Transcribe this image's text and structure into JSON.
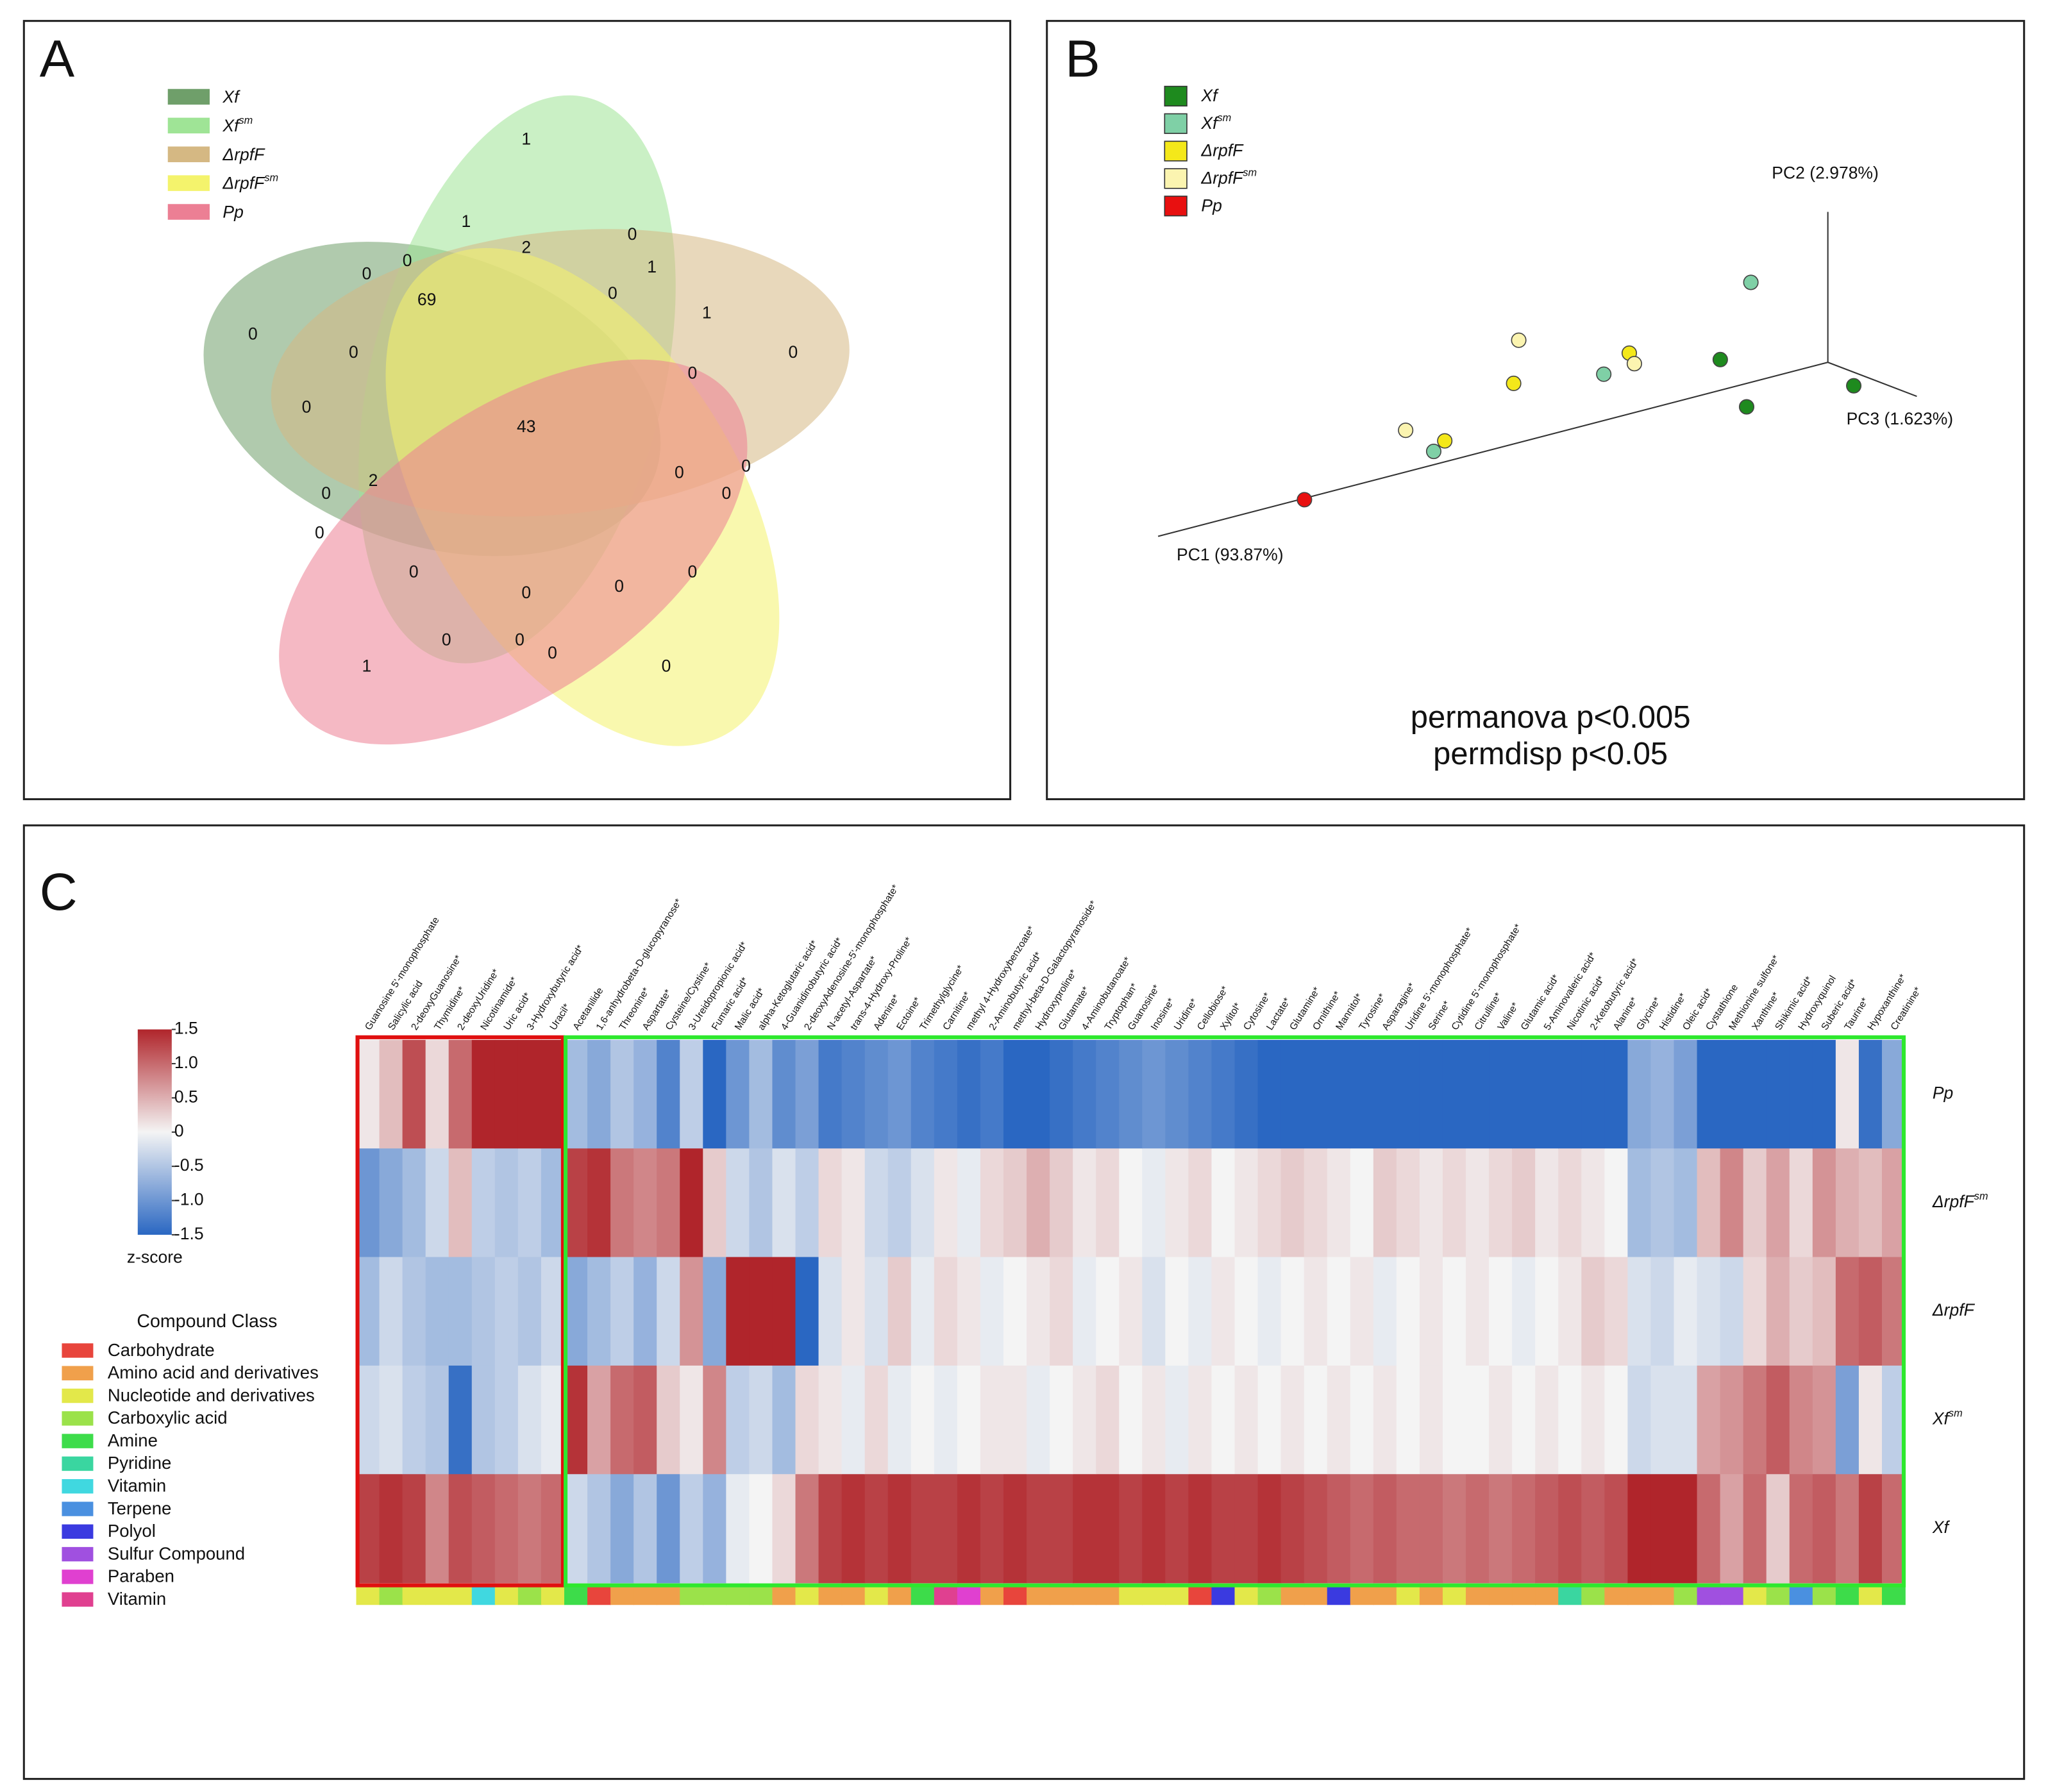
{
  "chart_data": [
    {
      "type": "venn",
      "panel": "A",
      "series": [
        {
          "name": "Xf",
          "color": "#6f9f6a"
        },
        {
          "name": "Xf",
          "sup": "sm",
          "color": "#9fe496"
        },
        {
          "name": "ΔrpfF",
          "color": "#d5b883"
        },
        {
          "name": "ΔrpfF",
          "sup": "sm",
          "color": "#f4f36c"
        },
        {
          "name": "Pp",
          "color": "#ec7f94"
        }
      ],
      "counts": [
        1,
        1,
        2,
        0,
        1,
        0,
        0,
        69,
        0,
        1,
        0,
        0,
        0,
        0,
        0,
        43,
        2,
        0,
        0,
        0,
        0,
        0,
        0,
        0,
        0,
        0,
        0,
        0,
        0,
        1,
        0
      ]
    },
    {
      "type": "scatter",
      "panel": "B",
      "xlim": [
        0,
        100
      ],
      "ylim": [
        0,
        100
      ],
      "axis_labels": [
        "PC1 (93.87%)",
        "PC2 (2.978%)",
        "PC3 (1.623%)"
      ],
      "series": [
        {
          "name": "Xf",
          "color": "#1e8a1e",
          "x": [
            71.5,
            74.6,
            87.2
          ],
          "y": [
            63.5,
            49.6,
            55.8
          ]
        },
        {
          "name": "Xf",
          "sup": "sm",
          "color": "#7fd0a6",
          "x": [
            75.1,
            57.8,
            37.8
          ],
          "y": [
            86.2,
            59.2,
            36.5
          ]
        },
        {
          "name": "ΔrpfF",
          "color": "#f4e81a",
          "x": [
            47.2,
            60.8,
            39.1
          ],
          "y": [
            56.5,
            65.4,
            39.6
          ]
        },
        {
          "name": "ΔrpfF",
          "sup": "sm",
          "color": "#fbf4b0",
          "x": [
            47.8,
            61.4,
            34.5
          ],
          "y": [
            69.2,
            62.3,
            42.7
          ]
        },
        {
          "name": "Pp",
          "color": "#e81010",
          "x": [
            22.6
          ],
          "y": [
            22.3
          ]
        }
      ],
      "annotations": [
        "permanova p<0.005",
        "permdisp p<0.05"
      ]
    },
    {
      "type": "heatmap",
      "panel": "C",
      "zlim": [
        -1.5,
        1.5
      ],
      "colormap": [
        "#2a67c2",
        "#f4f4f4",
        "#b0252b"
      ],
      "colorbar_ticks": [
        1.5,
        {
          "value": 1.0,
          "label": "1.0"
        },
        0.5,
        0,
        -0.5,
        {
          "value": -1.0,
          "label": "-1.0"
        },
        -1.5
      ],
      "colorbar_label": "z-score",
      "legend_title": "Compound Class",
      "classes": [
        {
          "name": "Carbohydrate",
          "color": "#e8453c"
        },
        {
          "name": "Amino acid and derivatives",
          "color": "#f0a04b"
        },
        {
          "name": "Nucleotide and derivatives",
          "color": "#e3e84a"
        },
        {
          "name": "Carboxylic acid",
          "color": "#9be24a"
        },
        {
          "name": "Amine",
          "color": "#3ddc4a"
        },
        {
          "name": "Pyridine",
          "color": "#3ad6a0"
        },
        {
          "name": "Vitamin",
          "color": "#40d8e0"
        },
        {
          "name": "Terpene",
          "color": "#4a90e0"
        },
        {
          "name": "Polyol",
          "color": "#3a3ae0"
        },
        {
          "name": "Sulfur Compound",
          "color": "#a050e0"
        },
        {
          "name": "Paraben",
          "color": "#e040d0"
        },
        {
          "name": "Vitamin",
          "color": "#e04090"
        }
      ],
      "rows": [
        {
          "name": "Pp"
        },
        {
          "name": "ΔrpfF",
          "sup": "sm"
        },
        {
          "name": "ΔrpfF"
        },
        {
          "name": "Xf",
          "sup": "sm"
        },
        {
          "name": "Xf"
        }
      ],
      "groups": [
        {
          "start": 0,
          "end": 8,
          "color": "#e01010"
        },
        {
          "start": 9,
          "end": 66,
          "color": "#2ee82e"
        }
      ],
      "columns": [
        {
          "name": "Guanosine 5'-monophosphate",
          "class": 2,
          "z": [
            0.1,
            -1.0,
            -0.6,
            -0.3,
            1.3
          ]
        },
        {
          "name": "Salicylic acid",
          "class": 3,
          "label_color": "#e0305a",
          "z": [
            0.4,
            -0.8,
            -0.3,
            -0.2,
            1.4
          ]
        },
        {
          "name": "2-deoxyGuanosine*",
          "class": 2,
          "z": [
            1.2,
            -0.6,
            -0.5,
            -0.4,
            1.3
          ]
        },
        {
          "name": "Thymidine*",
          "class": 2,
          "z": [
            0.2,
            -0.3,
            -0.6,
            -0.5,
            0.8
          ]
        },
        {
          "name": "2-deoxyUridine*",
          "class": 2,
          "label_color": "#f08a24",
          "z": [
            1.0,
            0.4,
            -0.6,
            -1.4,
            1.2
          ]
        },
        {
          "name": "Nicotinamide*",
          "class": 6,
          "z": [
            1.5,
            -0.4,
            -0.5,
            -0.5,
            1.1
          ]
        },
        {
          "name": "Uric acid*",
          "class": 2,
          "z": [
            1.5,
            -0.5,
            -0.4,
            -0.4,
            1.0
          ]
        },
        {
          "name": "3-Hydroxybutyric acid*",
          "class": 3,
          "z": [
            1.5,
            -0.4,
            -0.5,
            -0.2,
            0.9
          ]
        },
        {
          "name": "Uracil*",
          "class": 2,
          "z": [
            1.5,
            -0.6,
            -0.3,
            -0.1,
            1.0
          ]
        },
        {
          "name": "Acetanilide",
          "class": 4,
          "z": [
            -0.6,
            1.3,
            -0.8,
            1.4,
            -0.3
          ]
        },
        {
          "name": "1,6-anhydrobeta-D-glucopyranose*",
          "class": 0,
          "z": [
            -0.8,
            1.4,
            -0.6,
            0.6,
            -0.5
          ]
        },
        {
          "name": "Threonine*",
          "class": 1,
          "z": [
            -0.5,
            0.9,
            -0.4,
            1.0,
            -0.8
          ]
        },
        {
          "name": "Aspartate*",
          "class": 1,
          "z": [
            -0.7,
            0.8,
            -0.7,
            1.1,
            -0.5
          ]
        },
        {
          "name": "Cysteine/Cystine*",
          "class": 1,
          "z": [
            -1.2,
            0.9,
            -0.3,
            0.3,
            -1.0
          ]
        },
        {
          "name": "3-Ureidopropionic acid*",
          "class": 3,
          "label_color": "#f08a24",
          "z": [
            -0.4,
            1.5,
            0.7,
            0.1,
            -0.4
          ]
        },
        {
          "name": "Fumaric acid*",
          "class": 3,
          "z": [
            -1.5,
            0.3,
            -0.8,
            0.8,
            -0.7
          ]
        },
        {
          "name": "Malic acid*",
          "class": 3,
          "z": [
            -1.0,
            -0.3,
            1.5,
            -0.4,
            -0.1
          ]
        },
        {
          "name": "alpha-Ketoglutaric acid*",
          "class": 3,
          "z": [
            -0.6,
            -0.5,
            1.5,
            -0.3,
            0.0
          ]
        },
        {
          "name": "4-Guanidinobutyric acid*",
          "class": 1,
          "z": [
            -1.1,
            -0.2,
            1.5,
            -0.6,
            0.2
          ]
        },
        {
          "name": "2-deoxyAdenosine-5'-monophosphate*",
          "class": 2,
          "z": [
            -0.9,
            -0.4,
            -1.5,
            0.2,
            0.9
          ]
        },
        {
          "name": "N-acetyl-Aspartate*",
          "class": 1,
          "z": [
            -1.3,
            0.2,
            -0.2,
            0.1,
            1.3
          ]
        },
        {
          "name": "trans-4-Hydroxy-Proline*",
          "class": 1,
          "z": [
            -1.2,
            0.1,
            0.1,
            -0.1,
            1.4
          ]
        },
        {
          "name": "Adenine*",
          "class": 2,
          "z": [
            -1.1,
            -0.3,
            -0.2,
            0.2,
            1.3
          ]
        },
        {
          "name": "Ectoine*",
          "class": 1,
          "z": [
            -1.0,
            -0.4,
            0.3,
            -0.1,
            1.4
          ]
        },
        {
          "name": "Trimethylglycine*",
          "class": 4,
          "z": [
            -1.2,
            -0.2,
            -0.1,
            0.0,
            1.3
          ]
        },
        {
          "name": "Carnitine*",
          "class": 11,
          "label_color": "#e0305a",
          "z": [
            -1.3,
            0.1,
            0.2,
            -0.1,
            1.3
          ]
        },
        {
          "name": "methyl 4-Hydroxybenzoate*",
          "class": 10,
          "z": [
            -1.4,
            -0.1,
            0.1,
            0.0,
            1.4
          ]
        },
        {
          "name": "2-Aminobutyric acid*",
          "class": 1,
          "z": [
            -1.3,
            0.2,
            -0.1,
            0.1,
            1.3
          ]
        },
        {
          "name": "methyl-beta-D-Galactopyranoside*",
          "class": 0,
          "z": [
            -1.5,
            0.3,
            0.0,
            0.1,
            1.4
          ]
        },
        {
          "name": "Hydroxyproline*",
          "class": 1,
          "z": [
            -1.5,
            0.5,
            0.1,
            -0.1,
            1.3
          ]
        },
        {
          "name": "Glutamate*",
          "class": 1,
          "z": [
            -1.4,
            0.3,
            0.2,
            0.0,
            1.3
          ]
        },
        {
          "name": "4-Aminobutanoate*",
          "class": 1,
          "z": [
            -1.3,
            0.1,
            -0.1,
            0.1,
            1.4
          ]
        },
        {
          "name": "Tryptophan*",
          "class": 1,
          "z": [
            -1.2,
            0.2,
            0.0,
            0.2,
            1.4
          ]
        },
        {
          "name": "Guanosine*",
          "class": 2,
          "z": [
            -1.1,
            0.0,
            0.1,
            0.0,
            1.3
          ]
        },
        {
          "name": "Inosine*",
          "class": 2,
          "z": [
            -1.0,
            -0.1,
            -0.2,
            0.1,
            1.4
          ]
        },
        {
          "name": "Uridine*",
          "class": 2,
          "z": [
            -1.1,
            0.1,
            0.0,
            -0.1,
            1.3
          ]
        },
        {
          "name": "Cellobiose*",
          "class": 0,
          "z": [
            -1.2,
            0.2,
            -0.1,
            0.1,
            1.4
          ]
        },
        {
          "name": "Xylitol*",
          "class": 8,
          "z": [
            -1.3,
            0.0,
            0.1,
            0.0,
            1.3
          ]
        },
        {
          "name": "Cytosine*",
          "class": 2,
          "z": [
            -1.4,
            0.1,
            0.0,
            0.1,
            1.3
          ]
        },
        {
          "name": "Lactate*",
          "class": 3,
          "z": [
            -1.5,
            0.2,
            -0.1,
            0.0,
            1.4
          ]
        },
        {
          "name": "Glutamine*",
          "class": 1,
          "z": [
            -1.5,
            0.3,
            0.0,
            0.1,
            1.3
          ]
        },
        {
          "name": "Ornithine*",
          "class": 1,
          "z": [
            -1.5,
            0.2,
            0.1,
            0.0,
            1.2
          ]
        },
        {
          "name": "Mannitol*",
          "class": 8,
          "z": [
            -1.5,
            0.1,
            0.0,
            0.1,
            1.1
          ]
        },
        {
          "name": "Tyrosine*",
          "class": 1,
          "z": [
            -1.5,
            0.0,
            0.1,
            0.0,
            1.0
          ]
        },
        {
          "name": "Asparagine*",
          "class": 1,
          "z": [
            -1.5,
            0.3,
            -0.1,
            0.1,
            1.1
          ]
        },
        {
          "name": "Uridine 5'-monophosphate*",
          "class": 2,
          "z": [
            -1.5,
            0.2,
            0.0,
            0.0,
            1.0
          ]
        },
        {
          "name": "Serine*",
          "class": 1,
          "z": [
            -1.5,
            0.1,
            0.1,
            0.1,
            1.0
          ]
        },
        {
          "name": "Cytidine 5'-monophosphate*",
          "class": 2,
          "z": [
            -1.5,
            0.2,
            0.0,
            0.0,
            0.9
          ]
        },
        {
          "name": "Citrulline*",
          "class": 1,
          "z": [
            -1.5,
            0.1,
            0.1,
            0.0,
            1.0
          ]
        },
        {
          "name": "Valine*",
          "class": 1,
          "z": [
            -1.5,
            0.2,
            0.0,
            0.1,
            0.9
          ]
        },
        {
          "name": "Glutamic acid*",
          "class": 1,
          "z": [
            -1.5,
            0.3,
            -0.1,
            0.0,
            1.0
          ]
        },
        {
          "name": "5-Aminovaleric acid*",
          "class": 1,
          "z": [
            -1.5,
            0.1,
            0.0,
            0.1,
            1.1
          ]
        },
        {
          "name": "Nicotinic acid*",
          "class": 5,
          "z": [
            -1.5,
            0.2,
            0.1,
            0.0,
            1.2
          ]
        },
        {
          "name": "2-Ketobutyric acid*",
          "class": 3,
          "z": [
            -1.5,
            0.1,
            0.3,
            0.1,
            1.1
          ]
        },
        {
          "name": "Alanine*",
          "class": 1,
          "z": [
            -1.5,
            0.0,
            0.2,
            0.0,
            1.2
          ]
        },
        {
          "name": "Glycine*",
          "class": 1,
          "z": [
            -0.8,
            -0.6,
            -0.2,
            -0.3,
            1.5
          ]
        },
        {
          "name": "Histidine*",
          "class": 1,
          "z": [
            -0.7,
            -0.5,
            -0.3,
            -0.2,
            1.5
          ]
        },
        {
          "name": "Oleic acid*",
          "class": 3,
          "z": [
            -0.9,
            -0.6,
            -0.1,
            -0.2,
            1.5
          ]
        },
        {
          "name": "Cystathione",
          "class": 9,
          "z": [
            -1.5,
            0.4,
            -0.2,
            0.6,
            1.0
          ]
        },
        {
          "name": "Methionine sulfone*",
          "class": 9,
          "z": [
            -1.5,
            0.8,
            -0.3,
            0.7,
            0.6
          ]
        },
        {
          "name": "Xanthine*",
          "class": 2,
          "z": [
            -1.5,
            0.3,
            0.2,
            0.9,
            1.0
          ]
        },
        {
          "name": "Shikimic acid*",
          "class": 3,
          "z": [
            -1.5,
            0.6,
            0.5,
            1.1,
            0.3
          ]
        },
        {
          "name": "Hydroxyquinol",
          "class": 7,
          "z": [
            -1.5,
            0.2,
            0.3,
            0.8,
            1.0
          ]
        },
        {
          "name": "Suberic acid*",
          "class": 3,
          "label_color": "#e0305a",
          "z": [
            -1.5,
            0.7,
            0.4,
            0.7,
            1.1
          ]
        },
        {
          "name": "Taurine*",
          "class": 4,
          "z": [
            0.1,
            0.5,
            1.0,
            -0.9,
            0.9
          ]
        },
        {
          "name": "Hypoxanthine*",
          "class": 2,
          "z": [
            -1.4,
            0.4,
            1.1,
            0.1,
            1.3
          ]
        },
        {
          "name": "Creatinine*",
          "class": 4,
          "z": [
            -0.8,
            0.6,
            0.9,
            -0.4,
            1.0
          ]
        }
      ]
    }
  ]
}
